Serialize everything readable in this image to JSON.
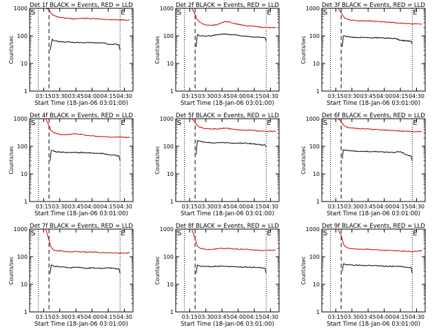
{
  "colors": {
    "events": "#000000",
    "lld": "#cc0000",
    "axis": "#000000",
    "background": "#ffffff"
  },
  "common": {
    "ylabel": "Counts/sec",
    "xlabel": "Start Time (18-Jan-06 03:01:00)",
    "x_ticks": [
      "03:15",
      "03:30",
      "03:45",
      "04:00",
      "04:15",
      "04:30"
    ],
    "y_ticks": [
      "1",
      "10",
      "100",
      "1000"
    ],
    "s_marker": "S",
    "e_marker": "E",
    "ylim": [
      1,
      1000
    ],
    "xlim": [
      "03:02",
      "04:38"
    ],
    "log_y": true
  },
  "chart_data": [
    {
      "type": "line",
      "title": "Det 1f BLACK = Events, RED = LLD",
      "dotted_lines": [
        "03:10",
        "04:26"
      ],
      "dashed_line": "03:20",
      "series": [
        {
          "key": "events",
          "x": [
            "03:21",
            "03:23",
            "03:25",
            "03:30",
            "03:35",
            "03:40",
            "03:45",
            "03:50",
            "03:55",
            "04:00",
            "04:05",
            "04:10",
            "04:15",
            "04:20",
            "04:25",
            "04:26"
          ],
          "values": [
            30,
            75,
            66,
            62,
            60,
            60,
            58,
            58,
            57,
            57,
            56,
            56,
            50,
            50,
            48,
            30
          ]
        },
        {
          "key": "lld",
          "x": [
            "03:17",
            "03:20",
            "03:22",
            "03:24",
            "03:26",
            "03:28",
            "03:30",
            "03:35",
            "03:40",
            "03:45",
            "03:50",
            "03:55",
            "04:00",
            "04:05",
            "04:10",
            "04:15",
            "04:20",
            "04:25",
            "04:30",
            "04:35"
          ],
          "values": [
            1000,
            900,
            650,
            560,
            520,
            490,
            470,
            440,
            420,
            420,
            430,
            430,
            420,
            410,
            400,
            390,
            390,
            380,
            380,
            375
          ]
        }
      ]
    },
    {
      "type": "line",
      "title": "Det 2f BLACK = Events, RED = LLD",
      "dotted_lines": [
        "03:10",
        "04:26"
      ],
      "dashed_line": "03:20",
      "series": [
        {
          "key": "events",
          "x": [
            "03:21",
            "03:22",
            "03:25",
            "03:30",
            "03:35",
            "03:40",
            "03:45",
            "03:50",
            "03:55",
            "04:00",
            "04:05",
            "04:10",
            "04:15",
            "04:20",
            "04:25",
            "04:26"
          ],
          "values": [
            40,
            110,
            100,
            100,
            100,
            110,
            115,
            115,
            110,
            105,
            100,
            95,
            90,
            90,
            85,
            65
          ]
        },
        {
          "key": "lld",
          "x": [
            "03:17",
            "03:20",
            "03:22",
            "03:24",
            "03:26",
            "03:28",
            "03:30",
            "03:35",
            "03:40",
            "03:45",
            "03:50",
            "03:55",
            "04:00",
            "04:05",
            "04:10",
            "04:15",
            "04:20",
            "04:25",
            "04:30",
            "04:35"
          ],
          "values": [
            1000,
            600,
            380,
            320,
            290,
            260,
            250,
            240,
            250,
            310,
            330,
            290,
            260,
            240,
            230,
            220,
            210,
            200,
            200,
            195
          ]
        }
      ]
    },
    {
      "type": "line",
      "title": "Det 3f BLACK = Events, RED = LLD",
      "dotted_lines": [
        "03:10",
        "04:26"
      ],
      "dashed_line": "03:20",
      "series": [
        {
          "key": "events",
          "x": [
            "03:21",
            "03:22",
            "03:25",
            "03:30",
            "03:35",
            "03:40",
            "03:45",
            "03:50",
            "03:55",
            "04:00",
            "04:05",
            "04:10",
            "04:15",
            "04:20",
            "04:25",
            "04:26"
          ],
          "values": [
            40,
            100,
            95,
            90,
            88,
            88,
            86,
            86,
            85,
            84,
            82,
            80,
            70,
            66,
            64,
            50
          ]
        },
        {
          "key": "lld",
          "x": [
            "03:17",
            "03:20",
            "03:22",
            "03:24",
            "03:26",
            "03:28",
            "03:30",
            "03:35",
            "03:40",
            "03:45",
            "03:50",
            "03:55",
            "04:00",
            "04:05",
            "04:10",
            "04:15",
            "04:20",
            "04:25",
            "04:30",
            "04:35"
          ],
          "values": [
            1000,
            700,
            500,
            430,
            400,
            380,
            370,
            350,
            350,
            350,
            340,
            330,
            320,
            310,
            300,
            290,
            280,
            270,
            270,
            265
          ]
        }
      ]
    },
    {
      "type": "line",
      "title": "Det 4f BLACK = Events, RED = LLD",
      "dotted_lines": [
        "03:10",
        "04:26"
      ],
      "dashed_line": "03:20",
      "series": [
        {
          "key": "events",
          "x": [
            "03:21",
            "03:22",
            "03:25",
            "03:30",
            "03:35",
            "03:40",
            "03:45",
            "03:50",
            "03:55",
            "04:00",
            "04:05",
            "04:10",
            "04:15",
            "04:20",
            "04:25",
            "04:26"
          ],
          "values": [
            30,
            70,
            65,
            62,
            60,
            60,
            60,
            60,
            58,
            57,
            56,
            55,
            50,
            48,
            45,
            30
          ]
        },
        {
          "key": "lld",
          "x": [
            "03:17",
            "03:20",
            "03:22",
            "03:24",
            "03:26",
            "03:28",
            "03:30",
            "03:35",
            "03:40",
            "03:45",
            "03:50",
            "03:55",
            "04:00",
            "04:05",
            "04:10",
            "04:15",
            "04:20",
            "04:25",
            "04:30",
            "04:35"
          ],
          "values": [
            1000,
            550,
            360,
            320,
            300,
            280,
            270,
            260,
            270,
            290,
            270,
            250,
            240,
            230,
            225,
            220,
            215,
            215,
            210,
            210
          ]
        }
      ]
    },
    {
      "type": "line",
      "title": "Det 5f BLACK = Events, RED = LLD",
      "dotted_lines": [
        "03:10",
        "04:26"
      ],
      "dashed_line": "03:20",
      "series": [
        {
          "key": "events",
          "x": [
            "03:21",
            "03:22",
            "03:25",
            "03:30",
            "03:35",
            "03:40",
            "03:45",
            "03:50",
            "03:55",
            "04:00",
            "04:05",
            "04:10",
            "04:15",
            "04:20",
            "04:25",
            "04:26"
          ],
          "values": [
            50,
            160,
            150,
            140,
            135,
            135,
            135,
            135,
            130,
            130,
            130,
            128,
            120,
            115,
            110,
            95
          ]
        },
        {
          "key": "lld",
          "x": [
            "03:17",
            "03:20",
            "03:22",
            "03:24",
            "03:26",
            "03:28",
            "03:30",
            "03:35",
            "03:40",
            "03:45",
            "03:50",
            "03:55",
            "04:00",
            "04:05",
            "04:10",
            "04:15",
            "04:20",
            "04:25",
            "04:30",
            "04:35"
          ],
          "values": [
            1000,
            750,
            560,
            500,
            470,
            450,
            440,
            420,
            420,
            450,
            440,
            420,
            400,
            390,
            380,
            370,
            360,
            350,
            350,
            345
          ]
        }
      ]
    },
    {
      "type": "line",
      "title": "Det 6f BLACK = Events, RED = LLD",
      "dotted_lines": [
        "03:10",
        "04:26"
      ],
      "dashed_line": "03:20",
      "series": [
        {
          "key": "events",
          "x": [
            "03:21",
            "03:22",
            "03:25",
            "03:30",
            "03:35",
            "03:40",
            "03:45",
            "03:50",
            "03:55",
            "04:00",
            "04:05",
            "04:10",
            "04:15",
            "04:20",
            "04:25",
            "04:26"
          ],
          "values": [
            35,
            75,
            70,
            68,
            66,
            65,
            65,
            64,
            63,
            62,
            60,
            60,
            65,
            50,
            45,
            30
          ]
        },
        {
          "key": "lld",
          "x": [
            "03:17",
            "03:20",
            "03:22",
            "03:24",
            "03:26",
            "03:28",
            "03:30",
            "03:35",
            "03:40",
            "03:45",
            "03:50",
            "03:55",
            "04:00",
            "04:05",
            "04:10",
            "04:15",
            "04:20",
            "04:25",
            "04:30",
            "04:35"
          ],
          "values": [
            1000,
            800,
            600,
            520,
            490,
            470,
            460,
            440,
            430,
            420,
            410,
            400,
            390,
            380,
            370,
            360,
            350,
            340,
            340,
            335
          ]
        }
      ]
    },
    {
      "type": "line",
      "title": "Det 7f BLACK = Events, RED = LLD",
      "dotted_lines": [
        "03:10",
        "04:26"
      ],
      "dashed_line": "03:20",
      "series": [
        {
          "key": "events",
          "x": [
            "03:21",
            "03:22",
            "03:25",
            "03:30",
            "03:35",
            "03:40",
            "03:45",
            "03:50",
            "03:55",
            "04:00",
            "04:05",
            "04:10",
            "04:15",
            "04:20",
            "04:25",
            "04:26"
          ],
          "values": [
            25,
            50,
            45,
            44,
            42,
            40,
            42,
            40,
            38,
            40,
            38,
            38,
            40,
            38,
            36,
            25
          ]
        },
        {
          "key": "lld",
          "x": [
            "03:17",
            "03:20",
            "03:22",
            "03:24",
            "03:26",
            "03:28",
            "03:30",
            "03:35",
            "03:40",
            "03:45",
            "03:50",
            "03:55",
            "04:00",
            "04:05",
            "04:10",
            "04:15",
            "04:20",
            "04:25",
            "04:30",
            "04:35"
          ],
          "values": [
            1000,
            400,
            220,
            180,
            170,
            165,
            160,
            155,
            150,
            155,
            150,
            145,
            150,
            145,
            140,
            140,
            135,
            135,
            135,
            140
          ]
        }
      ]
    },
    {
      "type": "line",
      "title": "Det 8f BLACK = Events, RED = LLD",
      "dotted_lines": [
        "03:10",
        "04:26"
      ],
      "dashed_line": "03:20",
      "series": [
        {
          "key": "events",
          "x": [
            "03:21",
            "03:22",
            "03:25",
            "03:30",
            "03:35",
            "03:40",
            "03:45",
            "03:50",
            "03:55",
            "04:00",
            "04:05",
            "04:10",
            "04:15",
            "04:20",
            "04:25",
            "04:26"
          ],
          "values": [
            25,
            50,
            45,
            44,
            44,
            45,
            45,
            45,
            44,
            43,
            42,
            42,
            42,
            40,
            38,
            25
          ]
        },
        {
          "key": "lld",
          "x": [
            "03:17",
            "03:20",
            "03:22",
            "03:24",
            "03:26",
            "03:28",
            "03:30",
            "03:35",
            "03:40",
            "03:45",
            "03:50",
            "03:55",
            "04:00",
            "04:05",
            "04:10",
            "04:15",
            "04:20",
            "04:25",
            "04:30",
            "04:35"
          ],
          "values": [
            1000,
            450,
            250,
            210,
            195,
            190,
            185,
            185,
            190,
            200,
            200,
            195,
            190,
            185,
            180,
            175,
            170,
            170,
            170,
            175
          ]
        }
      ]
    },
    {
      "type": "line",
      "title": "Det 9f BLACK = Events, RED = LLD",
      "dotted_lines": [
        "03:10",
        "04:26"
      ],
      "dashed_line": "03:20",
      "series": [
        {
          "key": "events",
          "x": [
            "03:21",
            "03:22",
            "03:25",
            "03:30",
            "03:35",
            "03:40",
            "03:45",
            "03:50",
            "03:55",
            "04:00",
            "04:05",
            "04:10",
            "04:15",
            "04:20",
            "04:25",
            "04:26"
          ],
          "values": [
            30,
            55,
            52,
            50,
            50,
            48,
            48,
            48,
            46,
            45,
            45,
            45,
            45,
            42,
            40,
            25
          ]
        },
        {
          "key": "lld",
          "x": [
            "03:17",
            "03:20",
            "03:22",
            "03:24",
            "03:26",
            "03:28",
            "03:30",
            "03:35",
            "03:40",
            "03:45",
            "03:50",
            "03:55",
            "04:00",
            "04:05",
            "04:10",
            "04:15",
            "04:20",
            "04:25",
            "04:30",
            "04:35"
          ],
          "values": [
            1000,
            600,
            300,
            230,
            210,
            200,
            195,
            190,
            185,
            185,
            180,
            175,
            170,
            170,
            165,
            160,
            160,
            155,
            155,
            170
          ]
        }
      ]
    }
  ]
}
